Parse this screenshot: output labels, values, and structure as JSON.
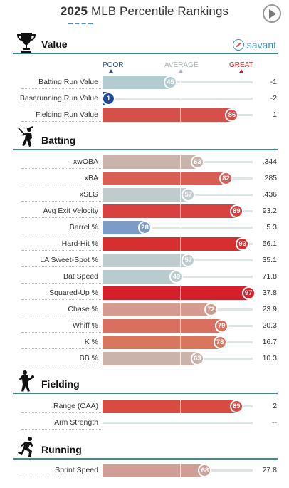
{
  "header": {
    "year": "2025",
    "title_rest": "MLB Percentile Rankings"
  },
  "brand": {
    "name": "savant"
  },
  "scale": {
    "poor": "POOR",
    "average": "AVERAGE",
    "great": "GREAT"
  },
  "colors": {
    "poor": "#2b4f9e",
    "average": "#b8cccf",
    "great": "#d3202a",
    "section_line": "#3d8b8b",
    "track": "#dde5e5"
  },
  "sections": {
    "value": {
      "title": "Value",
      "icon": "trophy-icon",
      "rows": [
        {
          "label": "Batting Run Value",
          "percentile": "45",
          "value": "-1",
          "color": "#b3ccd0"
        },
        {
          "label": "Baserunning Run Value",
          "percentile": "1",
          "value": "-2",
          "color": "#1f4c99"
        },
        {
          "label": "Fielding Run Value",
          "percentile": "86",
          "value": "1",
          "color": "#d6504a"
        }
      ]
    },
    "batting": {
      "title": "Batting",
      "icon": "batter-icon",
      "rows": [
        {
          "label": "xwOBA",
          "percentile": "63",
          "value": ".344",
          "color": "#c9b3ab"
        },
        {
          "label": "xBA",
          "percentile": "82",
          "value": ".285",
          "color": "#d95d54"
        },
        {
          "label": "xSLG",
          "percentile": "57",
          "value": ".436",
          "color": "#bfcbcd"
        },
        {
          "label": "Avg Exit Velocity",
          "percentile": "89",
          "value": "93.2",
          "color": "#d94040"
        },
        {
          "label": "Barrel %",
          "percentile": "28",
          "value": "5.3",
          "color": "#7d9bc9"
        },
        {
          "label": "Hard-Hit %",
          "percentile": "93",
          "value": "56.1",
          "color": "#d72e30"
        },
        {
          "label": "LA Sweet-Spot %",
          "percentile": "57",
          "value": "35.1",
          "color": "#bfcbcd"
        },
        {
          "label": "Bat Speed",
          "percentile": "49",
          "value": "71.8",
          "color": "#b8cccf"
        },
        {
          "label": "Squared-Up %",
          "percentile": "97",
          "value": "37.8",
          "color": "#d3202a"
        },
        {
          "label": "Chase %",
          "percentile": "72",
          "value": "23.9",
          "color": "#d49a8d"
        },
        {
          "label": "Whiff %",
          "percentile": "79",
          "value": "20.3",
          "color": "#d9705f"
        },
        {
          "label": "K %",
          "percentile": "78",
          "value": "16.7",
          "color": "#d9765f"
        },
        {
          "label": "BB %",
          "percentile": "63",
          "value": "10.3",
          "color": "#c9b3ab"
        }
      ]
    },
    "fielding": {
      "title": "Fielding",
      "icon": "fielder-icon",
      "rows": [
        {
          "label": "Range (OAA)",
          "percentile": "89",
          "value": "2",
          "color": "#d94a40"
        },
        {
          "label": "Arm Strength",
          "percentile": "",
          "value": "--",
          "color": ""
        }
      ]
    },
    "running": {
      "title": "Running",
      "icon": "runner-icon",
      "rows": [
        {
          "label": "Sprint Speed",
          "percentile": "68",
          "value": "27.8",
          "color": "#cf9f97"
        }
      ]
    }
  }
}
